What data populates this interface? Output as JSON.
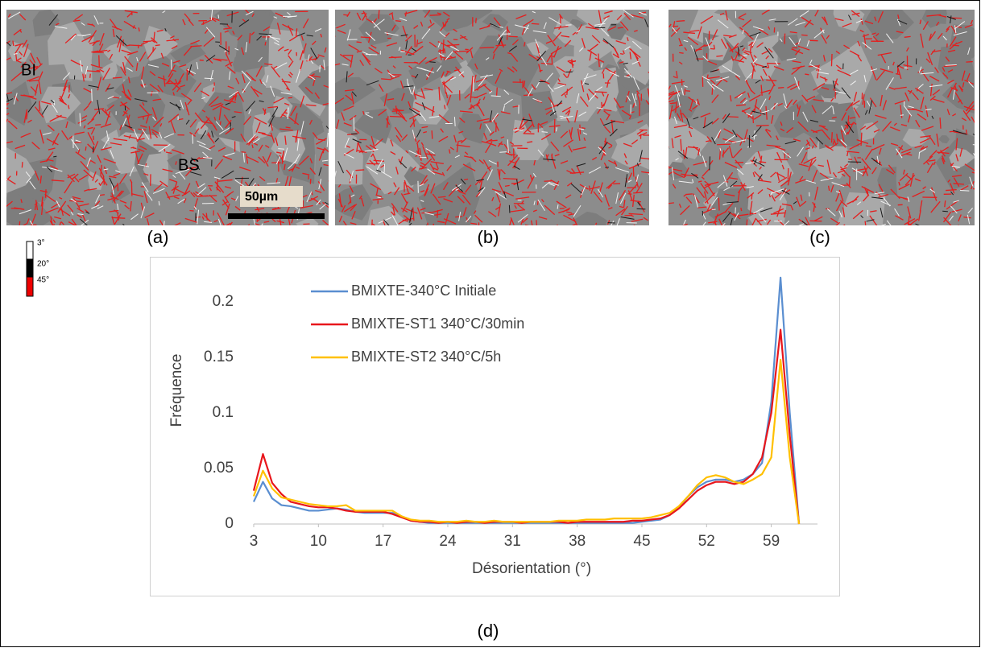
{
  "panels": [
    {
      "label": "(a)",
      "annotations": [
        "BI",
        "BS"
      ],
      "scale_bar": "50µm"
    },
    {
      "label": "(b)"
    },
    {
      "label": "(c)"
    }
  ],
  "color_key": [
    "3°",
    "20°",
    "45°"
  ],
  "chart_data": {
    "type": "line",
    "panel_label": "(d)",
    "x_label": "Désorientation (°)",
    "y_label": "Fréquence",
    "x": [
      3,
      4,
      5,
      6,
      7,
      8,
      9,
      10,
      11,
      12,
      13,
      14,
      15,
      16,
      17,
      18,
      19,
      20,
      21,
      22,
      23,
      24,
      25,
      26,
      27,
      28,
      29,
      30,
      31,
      32,
      33,
      34,
      35,
      36,
      37,
      38,
      39,
      40,
      41,
      42,
      43,
      44,
      45,
      46,
      47,
      48,
      49,
      50,
      51,
      52,
      53,
      54,
      55,
      56,
      57,
      58,
      59,
      60,
      61,
      62
    ],
    "series": [
      {
        "name": "BMIXTE-340°C Initiale",
        "color": "#5a8ed0",
        "values": [
          0.02,
          0.038,
          0.023,
          0.017,
          0.016,
          0.014,
          0.012,
          0.012,
          0.013,
          0.014,
          0.013,
          0.011,
          0.01,
          0.01,
          0.01,
          0.01,
          0.007,
          0.003,
          0.002,
          0.001,
          0.001,
          0.001,
          0.001,
          0.001,
          0.001,
          0.001,
          0.001,
          0.001,
          0.001,
          0.001,
          0.001,
          0.001,
          0.001,
          0.001,
          0.001,
          0.001,
          0.001,
          0.001,
          0.001,
          0.001,
          0.001,
          0.001,
          0.002,
          0.003,
          0.004,
          0.008,
          0.015,
          0.025,
          0.033,
          0.038,
          0.04,
          0.04,
          0.038,
          0.04,
          0.045,
          0.055,
          0.11,
          0.222,
          0.1,
          0
        ]
      },
      {
        "name": "BMIXTE-ST1 340°C/30min",
        "color": "#e8161c",
        "values": [
          0.03,
          0.063,
          0.037,
          0.027,
          0.02,
          0.018,
          0.016,
          0.015,
          0.015,
          0.014,
          0.012,
          0.011,
          0.011,
          0.011,
          0.011,
          0.009,
          0.006,
          0.003,
          0.002,
          0.002,
          0.001,
          0.002,
          0.001,
          0.002,
          0.002,
          0.001,
          0.002,
          0.002,
          0.002,
          0.001,
          0.002,
          0.002,
          0.002,
          0.002,
          0.001,
          0.002,
          0.002,
          0.002,
          0.002,
          0.002,
          0.002,
          0.003,
          0.003,
          0.004,
          0.005,
          0.008,
          0.014,
          0.022,
          0.03,
          0.035,
          0.038,
          0.038,
          0.036,
          0.038,
          0.045,
          0.06,
          0.1,
          0.175,
          0.08,
          0
        ]
      },
      {
        "name": "BMIXTE-ST2 340°C/5h",
        "color": "#ffc000",
        "values": [
          0.025,
          0.048,
          0.032,
          0.024,
          0.022,
          0.02,
          0.018,
          0.017,
          0.016,
          0.016,
          0.017,
          0.012,
          0.012,
          0.012,
          0.012,
          0.012,
          0.007,
          0.004,
          0.003,
          0.003,
          0.002,
          0.002,
          0.002,
          0.003,
          0.002,
          0.002,
          0.003,
          0.002,
          0.002,
          0.002,
          0.002,
          0.002,
          0.002,
          0.003,
          0.003,
          0.003,
          0.004,
          0.004,
          0.004,
          0.005,
          0.005,
          0.005,
          0.005,
          0.006,
          0.008,
          0.01,
          0.016,
          0.025,
          0.035,
          0.042,
          0.044,
          0.042,
          0.038,
          0.036,
          0.04,
          0.045,
          0.06,
          0.148,
          0.06,
          0
        ]
      }
    ],
    "xlim": [
      3,
      64
    ],
    "xticks": [
      3,
      10,
      17,
      24,
      31,
      38,
      45,
      52,
      59
    ],
    "ylim": [
      0,
      0.24
    ],
    "yticks": [
      0,
      0.05,
      0.1,
      0.15,
      0.2
    ],
    "grid": false,
    "legend": "top-left"
  }
}
